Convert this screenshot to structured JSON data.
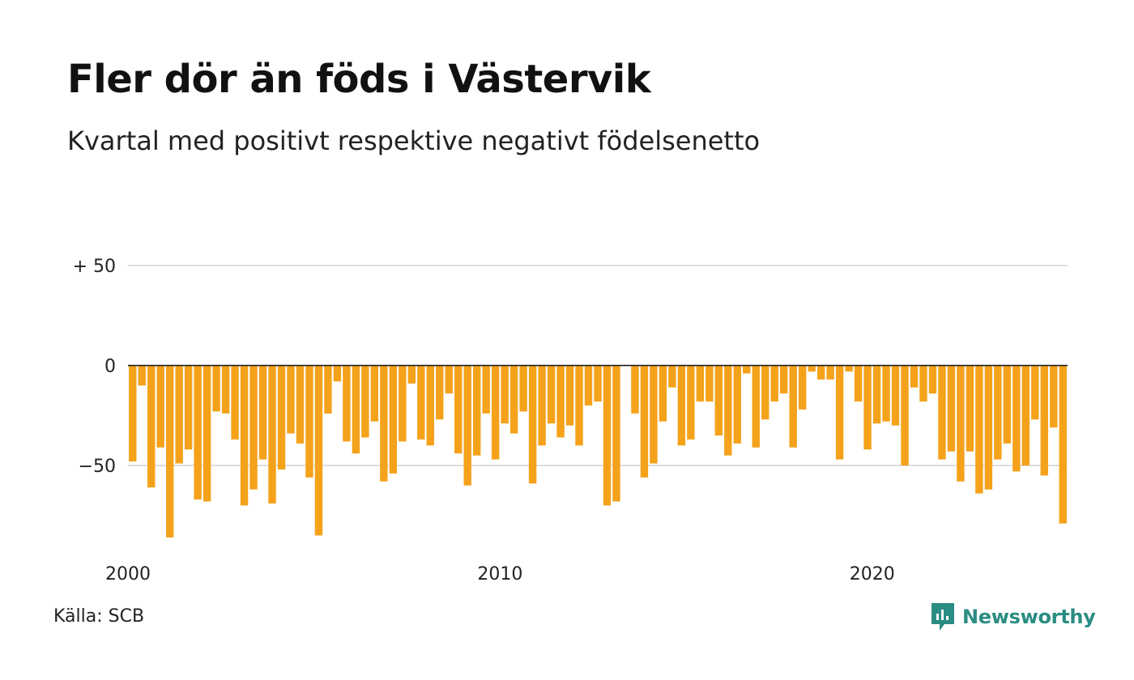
{
  "title": "Fler dör än föds i Västervik",
  "subtitle": "Kvartal med positivt respektive negativt födelsenetto",
  "source": "Källa: SCB",
  "brand": {
    "name": "Newsworthy",
    "icon": "newsworthy-logo-icon",
    "color": "#2a8c82"
  },
  "colors": {
    "bar": "#f5a21b",
    "grid": "#dddddd",
    "baseline": "#111111"
  },
  "chart_data": {
    "type": "bar",
    "x_start": "2000 Q1",
    "period": "quarter",
    "ylim": [
      -95,
      50
    ],
    "yticks": [
      {
        "value": 50,
        "label": "+ 50"
      },
      {
        "value": 0,
        "label": "0"
      },
      {
        "value": -50,
        "label": "−50"
      }
    ],
    "xticks": [
      {
        "label": "2000",
        "index": 0
      },
      {
        "label": "2010",
        "index": 40
      },
      {
        "label": "2020",
        "index": 80
      }
    ],
    "grid": true,
    "values": [
      -48,
      -10,
      -61,
      -41,
      -86,
      -49,
      -42,
      -67,
      -68,
      -23,
      -24,
      -37,
      -70,
      -62,
      -47,
      -69,
      -52,
      -34,
      -39,
      -56,
      -85,
      -24,
      -8,
      -38,
      -44,
      -36,
      -28,
      -58,
      -54,
      -38,
      -9,
      -37,
      -40,
      -27,
      -14,
      -44,
      -60,
      -45,
      -24,
      -47,
      -29,
      -34,
      -23,
      -59,
      -40,
      -29,
      -36,
      -30,
      -40,
      -20,
      -18,
      -70,
      -68,
      0,
      -24,
      -56,
      -49,
      -28,
      -11,
      -40,
      -37,
      -18,
      -18,
      -35,
      -45,
      -39,
      -4,
      -41,
      -27,
      -18,
      -14,
      -41,
      -22,
      -3,
      -7,
      -7,
      -47,
      -3,
      -18,
      -42,
      -29,
      -28,
      -30,
      -50,
      -11,
      -18,
      -14,
      -47,
      -43,
      -58,
      -43,
      -64,
      -62,
      -47,
      -39,
      -53,
      -50,
      -27,
      -55,
      -31,
      -79
    ]
  }
}
